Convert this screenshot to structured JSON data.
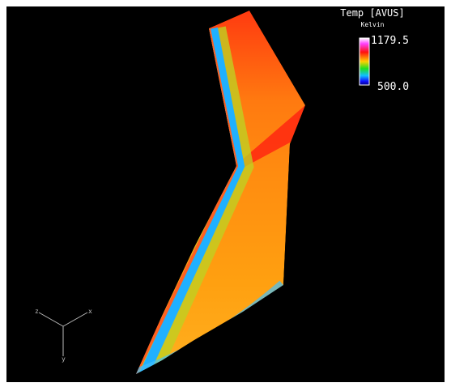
{
  "legend": {
    "title": "Temp [AVUS]",
    "units": "Kelvin",
    "max": "1179.5",
    "min": "500.0"
  },
  "axes": {
    "x": "x",
    "y": "y",
    "z": "z"
  }
}
